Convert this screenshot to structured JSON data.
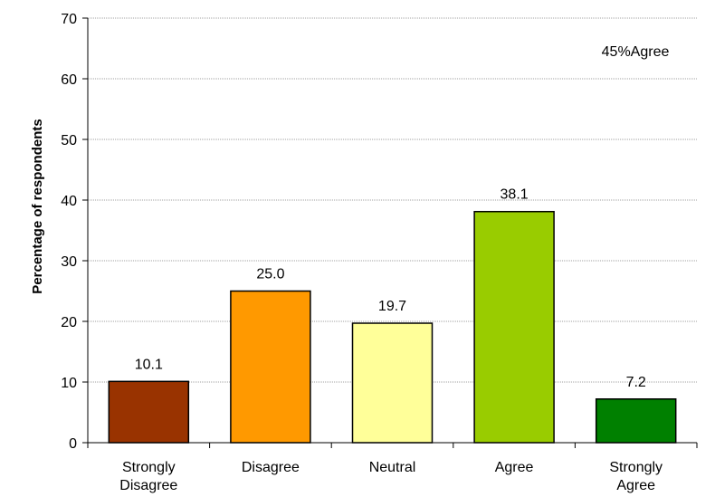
{
  "chart_data": {
    "type": "bar",
    "categories": [
      [
        "Strongly",
        "Disagree"
      ],
      [
        "Disagree"
      ],
      [
        "Neutral"
      ],
      [
        "Agree"
      ],
      [
        "Strongly",
        "Agree"
      ]
    ],
    "values": [
      10.1,
      25.0,
      19.7,
      38.1,
      7.2
    ],
    "value_labels": [
      "10.1",
      "25.0",
      "19.7",
      "38.1",
      "7.2"
    ],
    "bar_colors": [
      "#993300",
      "#ff9900",
      "#ffff99",
      "#99cc00",
      "#008000"
    ],
    "ylabel": "Percentage of respondents",
    "xlabel": "",
    "ylim": [
      0,
      70
    ],
    "yticks": [
      0,
      10,
      20,
      30,
      40,
      50,
      60,
      70
    ],
    "grid": true,
    "annotation": "45%Agree"
  }
}
